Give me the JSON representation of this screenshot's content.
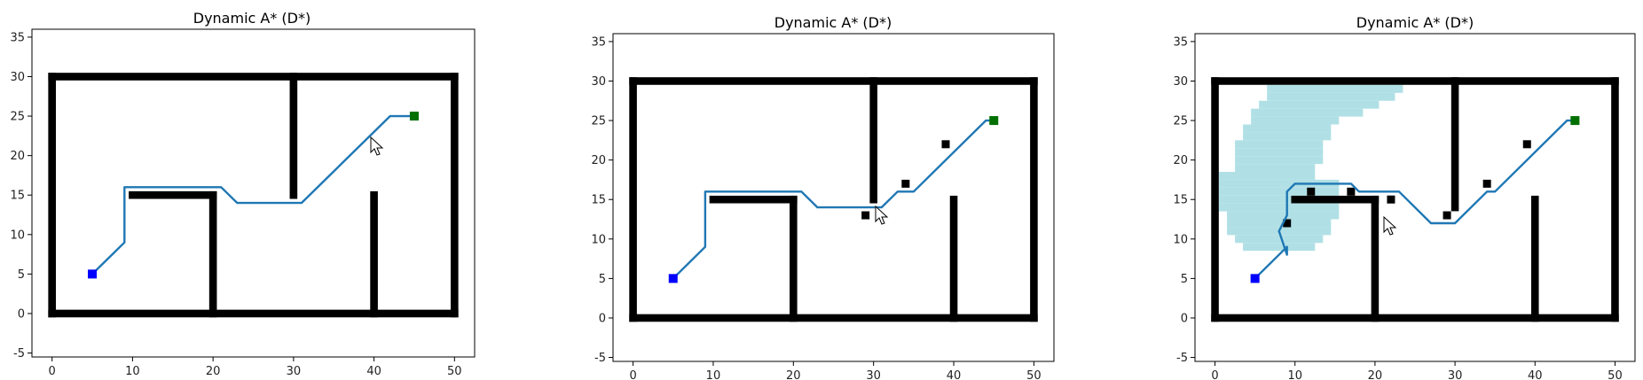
{
  "figure": {
    "background": "#ffffff"
  },
  "style": {
    "wall_color": "#000000",
    "path_color": "#1f77b4",
    "start_color": "#0000ff",
    "goal_color": "#007000",
    "explored_color": "#b0e0e6"
  },
  "chart_data": [
    {
      "type": "grid-path",
      "title": "Dynamic A* (D*)",
      "xlim": [
        -2.5,
        52.5
      ],
      "ylim": [
        -5.5,
        36
      ],
      "xticks": [
        0,
        10,
        20,
        30,
        40,
        50
      ],
      "yticks": [
        -5,
        0,
        5,
        10,
        15,
        20,
        25,
        30,
        35
      ],
      "start": [
        5,
        5
      ],
      "goal": [
        45,
        25
      ],
      "walls": [
        {
          "x": [
            0,
            50
          ],
          "y": [
            0,
            0
          ]
        },
        {
          "x": [
            0,
            50
          ],
          "y": [
            30,
            30
          ]
        },
        {
          "x": [
            0,
            0
          ],
          "y": [
            0,
            30
          ]
        },
        {
          "x": [
            50,
            50
          ],
          "y": [
            0,
            30
          ]
        },
        {
          "x": [
            10,
            20
          ],
          "y": [
            15,
            15
          ]
        },
        {
          "x": [
            20,
            20
          ],
          "y": [
            0,
            15
          ]
        },
        {
          "x": [
            30,
            30
          ],
          "y": [
            15,
            30
          ]
        },
        {
          "x": [
            40,
            40
          ],
          "y": [
            0,
            15
          ]
        }
      ],
      "obstacles": [],
      "path": [
        [
          5,
          5
        ],
        [
          9,
          9
        ],
        [
          9,
          16
        ],
        [
          21,
          16
        ],
        [
          23,
          14
        ],
        [
          31,
          14
        ],
        [
          42,
          25
        ],
        [
          45,
          25
        ]
      ],
      "explored": []
    },
    {
      "type": "grid-path",
      "title": "Dynamic A* (D*)",
      "xlim": [
        -2.5,
        52.5
      ],
      "ylim": [
        -5.5,
        36
      ],
      "xticks": [
        0,
        10,
        20,
        30,
        40,
        50
      ],
      "yticks": [
        -5,
        0,
        5,
        10,
        15,
        20,
        25,
        30,
        35
      ],
      "start": [
        5,
        5
      ],
      "goal": [
        45,
        25
      ],
      "walls": [
        {
          "x": [
            0,
            50
          ],
          "y": [
            0,
            0
          ]
        },
        {
          "x": [
            0,
            50
          ],
          "y": [
            30,
            30
          ]
        },
        {
          "x": [
            0,
            0
          ],
          "y": [
            0,
            30
          ]
        },
        {
          "x": [
            50,
            50
          ],
          "y": [
            0,
            30
          ]
        },
        {
          "x": [
            10,
            20
          ],
          "y": [
            15,
            15
          ]
        },
        {
          "x": [
            20,
            20
          ],
          "y": [
            0,
            15
          ]
        },
        {
          "x": [
            30,
            30
          ],
          "y": [
            15,
            30
          ]
        },
        {
          "x": [
            40,
            40
          ],
          "y": [
            0,
            15
          ]
        }
      ],
      "obstacles": [
        [
          29,
          13
        ],
        [
          34,
          17
        ],
        [
          39,
          22
        ]
      ],
      "path": [
        [
          5,
          5
        ],
        [
          9,
          9
        ],
        [
          9,
          16
        ],
        [
          21,
          16
        ],
        [
          23,
          14
        ],
        [
          31,
          14
        ],
        [
          33,
          16
        ],
        [
          35,
          16
        ],
        [
          44,
          25
        ],
        [
          45,
          25
        ]
      ],
      "explored": []
    },
    {
      "type": "grid-path",
      "title": "Dynamic A* (D*)",
      "xlim": [
        -2.5,
        52.5
      ],
      "ylim": [
        -5.5,
        36
      ],
      "xticks": [
        0,
        10,
        20,
        30,
        40,
        50
      ],
      "yticks": [
        -5,
        0,
        5,
        10,
        15,
        20,
        25,
        30,
        35
      ],
      "start": [
        5,
        5
      ],
      "goal": [
        45,
        25
      ],
      "walls": [
        {
          "x": [
            0,
            50
          ],
          "y": [
            0,
            0
          ]
        },
        {
          "x": [
            0,
            50
          ],
          "y": [
            30,
            30
          ]
        },
        {
          "x": [
            0,
            0
          ],
          "y": [
            0,
            30
          ]
        },
        {
          "x": [
            50,
            50
          ],
          "y": [
            0,
            30
          ]
        },
        {
          "x": [
            10,
            20
          ],
          "y": [
            15,
            15
          ]
        },
        {
          "x": [
            20,
            20
          ],
          "y": [
            0,
            15
          ]
        },
        {
          "x": [
            30,
            30
          ],
          "y": [
            14,
            30
          ]
        },
        {
          "x": [
            40,
            40
          ],
          "y": [
            0,
            15
          ]
        }
      ],
      "obstacles": [
        [
          9,
          12
        ],
        [
          12,
          16
        ],
        [
          17,
          16
        ],
        [
          22,
          15
        ],
        [
          29,
          13
        ],
        [
          34,
          17
        ],
        [
          39,
          22
        ]
      ],
      "path": [
        [
          5,
          5
        ],
        [
          9,
          9
        ],
        [
          9,
          8
        ],
        [
          8,
          11
        ],
        [
          9,
          13
        ],
        [
          9,
          16
        ],
        [
          10,
          17
        ],
        [
          17,
          17
        ],
        [
          18,
          16
        ],
        [
          23,
          16
        ],
        [
          27,
          12
        ],
        [
          30,
          12
        ],
        [
          34,
          16
        ],
        [
          35,
          16
        ],
        [
          44,
          25
        ],
        [
          45,
          25
        ]
      ],
      "explored": [
        {
          "y": 29,
          "x0": 7,
          "x1": 23
        },
        {
          "y": 28,
          "x0": 7,
          "x1": 22
        },
        {
          "y": 27,
          "x0": 6,
          "x1": 20
        },
        {
          "y": 26,
          "x0": 5,
          "x1": 18
        },
        {
          "y": 25,
          "x0": 5,
          "x1": 15
        },
        {
          "y": 24,
          "x0": 4,
          "x1": 14
        },
        {
          "y": 23,
          "x0": 4,
          "x1": 14
        },
        {
          "y": 22,
          "x0": 3,
          "x1": 13
        },
        {
          "y": 21,
          "x0": 3,
          "x1": 13
        },
        {
          "y": 20,
          "x0": 3,
          "x1": 13
        },
        {
          "y": 19,
          "x0": 3,
          "x1": 12
        },
        {
          "y": 18,
          "x0": 1,
          "x1": 12
        },
        {
          "y": 17,
          "x0": 1,
          "x1": 15
        },
        {
          "y": 16,
          "x0": 1,
          "x1": 15
        },
        {
          "y": 15,
          "x0": 1,
          "x1": 15
        },
        {
          "y": 14,
          "x0": 1,
          "x1": 15
        },
        {
          "y": 13,
          "x0": 2,
          "x1": 15
        },
        {
          "y": 12,
          "x0": 2,
          "x1": 14
        },
        {
          "y": 11,
          "x0": 2,
          "x1": 14
        },
        {
          "y": 10,
          "x0": 3,
          "x1": 13
        },
        {
          "y": 9,
          "x0": 4,
          "x1": 12
        }
      ]
    }
  ]
}
